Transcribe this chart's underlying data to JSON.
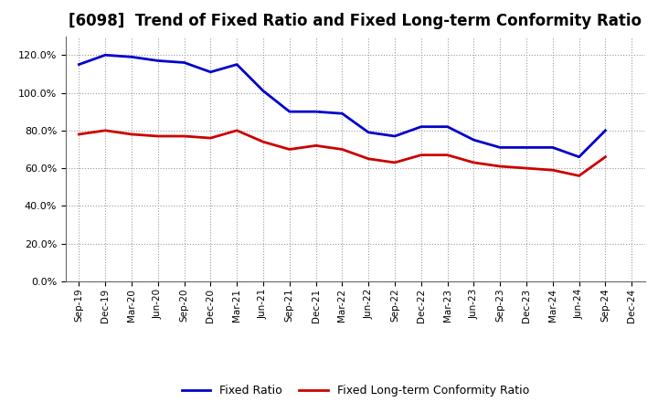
{
  "title": "[6098]  Trend of Fixed Ratio and Fixed Long-term Conformity Ratio",
  "x_labels": [
    "Sep-19",
    "Dec-19",
    "Mar-20",
    "Jun-20",
    "Sep-20",
    "Dec-20",
    "Mar-21",
    "Jun-21",
    "Sep-21",
    "Dec-21",
    "Mar-22",
    "Jun-22",
    "Sep-22",
    "Dec-22",
    "Mar-23",
    "Jun-23",
    "Sep-23",
    "Dec-23",
    "Mar-24",
    "Jun-24",
    "Sep-24",
    "Dec-24"
  ],
  "fixed_ratio": [
    1.15,
    1.2,
    1.19,
    1.17,
    1.16,
    1.11,
    1.15,
    1.01,
    0.9,
    0.9,
    0.89,
    0.79,
    0.77,
    0.82,
    0.82,
    0.75,
    0.71,
    0.71,
    0.71,
    0.66,
    0.8,
    null
  ],
  "fixed_lt_ratio": [
    0.78,
    0.8,
    0.78,
    0.77,
    0.77,
    0.76,
    0.8,
    0.74,
    0.7,
    0.72,
    0.7,
    0.65,
    0.63,
    0.67,
    0.67,
    0.63,
    0.61,
    0.6,
    0.59,
    0.56,
    0.66,
    null
  ],
  "fixed_ratio_color": "#0000CC",
  "fixed_lt_ratio_color": "#CC0000",
  "ylim": [
    0.0,
    1.3
  ],
  "yticks": [
    0.0,
    0.2,
    0.4,
    0.6,
    0.8,
    1.0,
    1.2
  ],
  "background_color": "#FFFFFF",
  "plot_bg_color": "#FFFFFF",
  "grid_color": "#999999",
  "legend_fixed_ratio": "Fixed Ratio",
  "legend_fixed_lt_ratio": "Fixed Long-term Conformity Ratio",
  "title_fontsize": 12,
  "linewidth": 2.0
}
